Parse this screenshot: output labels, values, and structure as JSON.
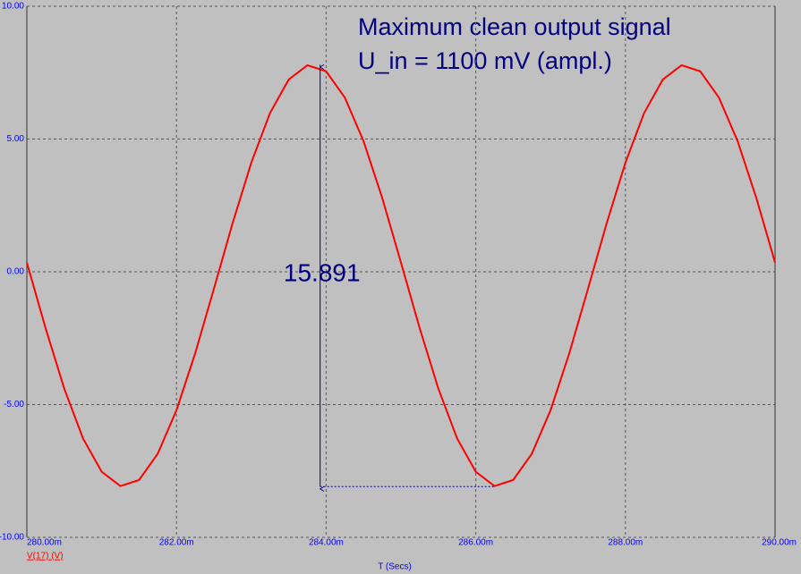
{
  "chart_data": {
    "type": "line",
    "annotations": [
      "Maximum clean output signal",
      "U_in = 1100 mV (ampl.)"
    ],
    "x_label": "T (Secs)",
    "x": [
      0.28,
      0.28025,
      0.2805,
      0.28075,
      0.281,
      0.28125,
      0.2815,
      0.28175,
      0.282,
      0.28225,
      0.2825,
      0.28275,
      0.283,
      0.28325,
      0.2835,
      0.28375,
      0.284,
      0.28425,
      0.2845,
      0.28475,
      0.285,
      0.28525,
      0.2855,
      0.28575,
      0.286,
      0.28625,
      0.2865,
      0.28675,
      0.287,
      0.28725,
      0.2875,
      0.28775,
      0.288,
      0.28825,
      0.2885,
      0.28875,
      0.289,
      0.28925,
      0.2895,
      0.28975,
      0.29
    ],
    "series": [
      {
        "name": "V(17) (V)",
        "color": "#ff0000",
        "values": [
          0.35,
          -2.12,
          -4.4,
          -6.27,
          -7.53,
          -8.07,
          -7.84,
          -6.85,
          -5.21,
          -3.07,
          -0.64,
          1.83,
          4.11,
          5.98,
          7.24,
          7.78,
          7.55,
          6.56,
          4.92,
          2.78,
          0.35,
          -2.12,
          -4.4,
          -6.27,
          -7.53,
          -8.07,
          -7.84,
          -6.85,
          -5.21,
          -3.07,
          -0.64,
          1.83,
          4.11,
          5.98,
          7.24,
          7.78,
          7.55,
          6.56,
          4.92,
          2.78,
          0.35
        ]
      }
    ],
    "measurement": {
      "x": 0.28392,
      "y_top": 7.8,
      "y_bottom": -8.091,
      "x_end": 0.28625,
      "label": 15.891,
      "color": "#000080"
    },
    "xlim": [
      0.28,
      0.29
    ],
    "xticks": [
      {
        "value": 0.28,
        "label": "280.00m"
      },
      {
        "value": 0.282,
        "label": "282.00m"
      },
      {
        "value": 0.284,
        "label": "284.00m"
      },
      {
        "value": 0.286,
        "label": "286.00m"
      },
      {
        "value": 0.288,
        "label": "288.00m"
      },
      {
        "value": 0.29,
        "label": "290.00m"
      }
    ],
    "ylim": [
      -10,
      10
    ],
    "yticks": [
      {
        "value": 10,
        "label": "10.00"
      },
      {
        "value": 5,
        "label": "5.00"
      },
      {
        "value": 0,
        "label": "0.00"
      },
      {
        "value": -5,
        "label": "-5.00"
      },
      {
        "value": -10,
        "label": "-10.00"
      }
    ],
    "grid": true
  }
}
